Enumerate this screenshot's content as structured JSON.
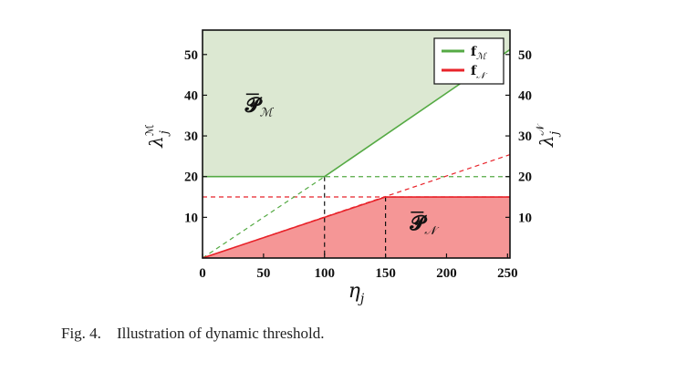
{
  "caption": {
    "label": "Fig. 4.",
    "text": "Illustration of dynamic threshold."
  },
  "chart_data": {
    "type": "area",
    "xlabel": "η",
    "xlabel_sub": "j",
    "ylabel_left": "λ",
    "ylabel_left_sup": "ℳ",
    "ylabel_left_sub": "j",
    "ylabel_right": "λ",
    "ylabel_right_sup": "𝒩",
    "ylabel_right_sub": "j",
    "xlim": [
      0,
      252
    ],
    "ylim": [
      0,
      56
    ],
    "xticks": [
      0,
      50,
      100,
      150,
      200,
      250
    ],
    "yticks": [
      10,
      20,
      30,
      40,
      50
    ],
    "legend_position": "top-right",
    "series": [
      {
        "name": "f",
        "name_sub": "ℳ",
        "color": "#55aa44",
        "x": [
          0,
          100,
          252
        ],
        "y": [
          20,
          20,
          51.2
        ]
      },
      {
        "name": "f",
        "name_sub": "𝒩",
        "color": "#e8232a",
        "x": [
          0,
          150,
          252
        ],
        "y": [
          0,
          15,
          15
        ]
      }
    ],
    "regions": [
      {
        "label": "𝓟",
        "label_sub": "ℳ",
        "color": "#dce8d2",
        "bound_series": 0,
        "side": "above",
        "label_x": 35,
        "label_y": 36
      },
      {
        "label": "𝓟",
        "label_sub": "𝒩",
        "color": "#f59696",
        "bound_series": 1,
        "side": "below",
        "label_x": 170,
        "label_y": 7
      }
    ],
    "reference_lines": [
      {
        "type": "horizontal",
        "y": 20,
        "color": "#55aa44"
      },
      {
        "type": "horizontal",
        "y": 15,
        "color": "#e8232a"
      },
      {
        "type": "slope",
        "from": [
          0,
          0
        ],
        "to": [
          100,
          20
        ],
        "color": "#55aa44"
      },
      {
        "type": "slope",
        "from": [
          0,
          0
        ],
        "to": [
          252,
          25.4
        ],
        "color": "#e8232a"
      },
      {
        "type": "vertical",
        "x": 100,
        "y": 20,
        "color": "#111111"
      },
      {
        "type": "vertical",
        "x": 150,
        "y": 15,
        "color": "#111111"
      }
    ]
  }
}
